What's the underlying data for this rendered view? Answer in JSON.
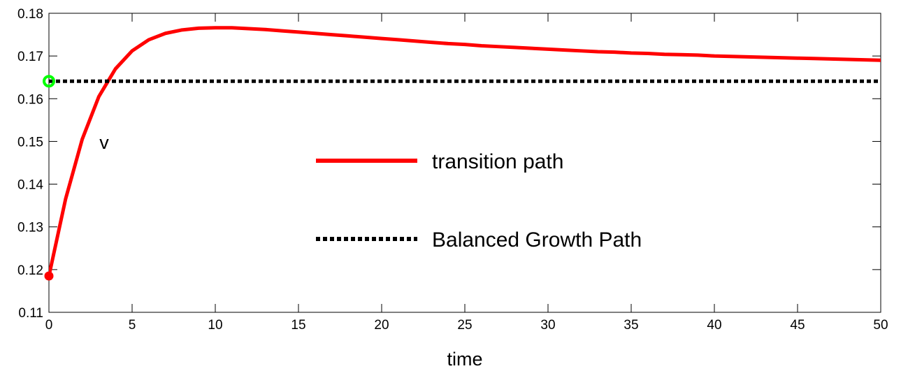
{
  "chart_data": {
    "type": "line",
    "title": "",
    "xlabel": "time",
    "ylabel": "",
    "xlim": [
      0,
      50
    ],
    "ylim": [
      0.11,
      0.18
    ],
    "grid": false,
    "legend_placement": "center",
    "x_ticks": [
      0,
      5,
      10,
      15,
      20,
      25,
      30,
      35,
      40,
      45,
      50
    ],
    "x_tick_labels": [
      "0",
      "5",
      "10",
      "15",
      "20",
      "25",
      "30",
      "35",
      "40",
      "45",
      "50"
    ],
    "y_ticks": [
      0.11,
      0.12,
      0.13,
      0.14,
      0.15,
      0.16,
      0.17,
      0.18
    ],
    "y_tick_labels": [
      "0.11",
      "0.12",
      "0.13",
      "0.14",
      "0.15",
      "0.16",
      "0.17",
      "0.18"
    ],
    "annotation": "v",
    "colors": {
      "transition": "#ff0000",
      "bgp": "#000000",
      "start_marker": "#ff0000",
      "bgp_marker": "#00ff00"
    },
    "series": [
      {
        "name": "transition path",
        "style": "solid",
        "x": [
          0,
          1,
          2,
          3,
          4,
          5,
          6,
          7,
          8,
          9,
          10,
          11,
          12,
          13,
          14,
          15,
          16,
          17,
          18,
          19,
          20,
          21,
          22,
          23,
          24,
          25,
          26,
          27,
          28,
          29,
          30,
          31,
          32,
          33,
          34,
          35,
          36,
          37,
          38,
          39,
          40,
          41,
          42,
          43,
          44,
          45,
          46,
          47,
          48,
          49,
          50
        ],
        "values": [
          0.1185,
          0.1365,
          0.1505,
          0.1605,
          0.167,
          0.1712,
          0.1738,
          0.1753,
          0.1761,
          0.1765,
          0.1766,
          0.1766,
          0.1764,
          0.1762,
          0.1759,
          0.1756,
          0.1753,
          0.175,
          0.1747,
          0.1744,
          0.1741,
          0.1738,
          0.1735,
          0.1732,
          0.1729,
          0.1727,
          0.1724,
          0.1722,
          0.172,
          0.1718,
          0.1716,
          0.1714,
          0.1712,
          0.171,
          0.1709,
          0.1707,
          0.1706,
          0.1704,
          0.1703,
          0.1702,
          0.17,
          0.1699,
          0.1698,
          0.1697,
          0.1696,
          0.1695,
          0.1694,
          0.1693,
          0.1692,
          0.1691,
          0.169
        ]
      },
      {
        "name": "Balanced Growth Path",
        "style": "dotted",
        "x": [
          0,
          50
        ],
        "values": [
          0.1641,
          0.1641
        ]
      }
    ],
    "markers": [
      {
        "x": 0,
        "y": 0.1185,
        "shape": "filled-circle",
        "color": "#ff0000"
      },
      {
        "x": 0,
        "y": 0.1641,
        "shape": "open-circle",
        "color": "#00ff00"
      }
    ]
  }
}
